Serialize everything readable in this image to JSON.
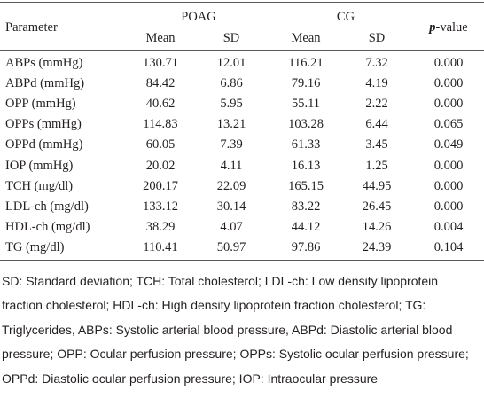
{
  "table": {
    "header": {
      "parameter": "Parameter",
      "groups": [
        "POAG",
        "CG"
      ],
      "sub": [
        "Mean",
        "SD",
        "Mean",
        "SD"
      ],
      "p_value": [
        "p",
        "-value"
      ]
    },
    "rows": [
      [
        "ABPs (mmHg)",
        "130.71",
        "12.01",
        "116.21",
        "7.32",
        "0.000"
      ],
      [
        "ABPd (mmHg)",
        "84.42",
        "6.86",
        "79.16",
        "4.19",
        "0.000"
      ],
      [
        "OPP (mmHg)",
        "40.62",
        "5.95",
        "55.11",
        "2.22",
        "0.000"
      ],
      [
        "OPPs (mmHg)",
        "114.83",
        "13.21",
        "103.28",
        "6.44",
        "0.065"
      ],
      [
        "OPPd (mmHg)",
        "60.05",
        "7.39",
        "61.33",
        "3.45",
        "0.049"
      ],
      [
        "IOP (mmHg)",
        "20.02",
        "4.11",
        "16.13",
        "1.25",
        "0.000"
      ],
      [
        "TCH (mg/dl)",
        "200.17",
        "22.09",
        "165.15",
        "44.95",
        "0.000"
      ],
      [
        "LDL-ch (mg/dl)",
        "133.12",
        "30.14",
        "83.22",
        "26.45",
        "0.000"
      ],
      [
        "HDL-ch (mg/dl)",
        "38.29",
        "4.07",
        "44.12",
        "14.26",
        "0.004"
      ],
      [
        "TG (mg/dl)",
        "110.41",
        "50.97",
        "97.86",
        "24.39",
        "0.104"
      ]
    ]
  },
  "footnote": "SD: Standard deviation; TCH: Total cholesterol; LDL-ch: Low density lipoprotein fraction cholesterol; HDL-ch: High density lipoprotein fraction cholesterol; TG: Triglycerides, ABPs: Systolic arterial blood pressure, ABPd: Diastolic arterial blood pressure; OPP: Ocular perfusion pressure; OPPs: Systolic ocular perfusion pressure; OPPd: Diastolic ocular perfusion pressure; IOP: Intraocular pressure"
}
